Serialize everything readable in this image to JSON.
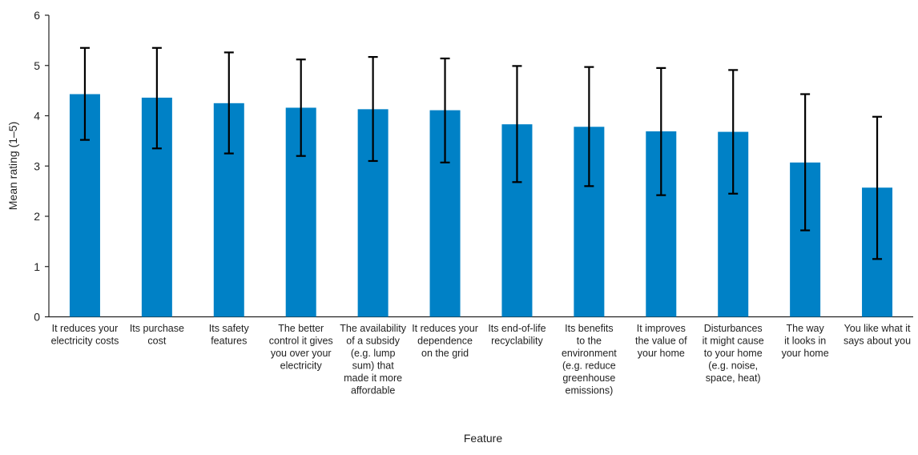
{
  "chart_data": {
    "type": "bar",
    "xlabel": "Feature",
    "ylabel": "Mean rating (1–5)",
    "ylim": [
      0,
      6
    ],
    "yticks": [
      0,
      1,
      2,
      3,
      4,
      5,
      6
    ],
    "grid": false,
    "bar_color": "#0081c6",
    "error_color": "#000000",
    "categories": [
      [
        "It reduces your",
        "electricity costs"
      ],
      [
        "Its purchase",
        "cost"
      ],
      [
        "Its safety",
        "features"
      ],
      [
        "The better",
        "control it gives",
        "you over your",
        "electricity"
      ],
      [
        "The availability",
        "of a subsidy",
        "(e.g. lump",
        "sum) that",
        "made it more",
        "affordable"
      ],
      [
        "It reduces your",
        "dependence",
        "on the grid"
      ],
      [
        "Its end-of-life",
        "recyclability"
      ],
      [
        "Its benefits",
        "to the",
        "environment",
        "(e.g. reduce",
        "greenhouse",
        "emissions)"
      ],
      [
        "It improves",
        "the value of",
        "your home"
      ],
      [
        "Disturbances",
        "it might cause",
        "to your home",
        "(e.g. noise,",
        "space, heat)"
      ],
      [
        "The way",
        "it looks in",
        "your home"
      ],
      [
        "You like what it",
        "says about you"
      ]
    ],
    "values": [
      4.43,
      4.36,
      4.25,
      4.16,
      4.13,
      4.11,
      3.83,
      3.78,
      3.69,
      3.68,
      3.07,
      2.57
    ],
    "error_high": [
      5.35,
      5.35,
      5.26,
      5.12,
      5.17,
      5.14,
      4.99,
      4.97,
      4.95,
      4.91,
      4.43,
      3.98
    ],
    "error_low": [
      3.52,
      3.35,
      3.25,
      3.2,
      3.1,
      3.07,
      2.68,
      2.6,
      2.42,
      2.45,
      1.72,
      1.15
    ]
  }
}
